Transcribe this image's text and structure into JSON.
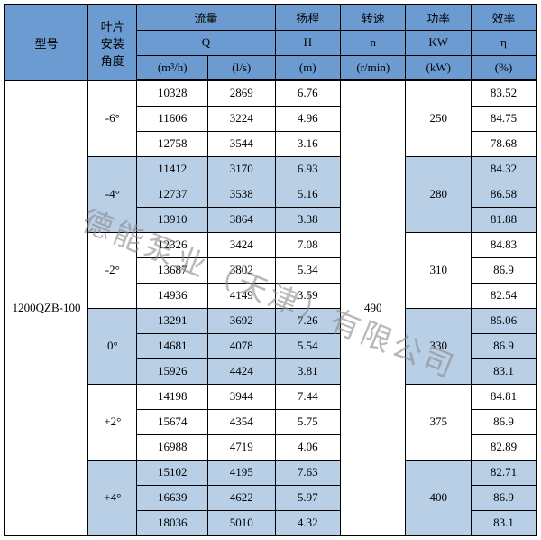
{
  "colors": {
    "header_bg": "#6b9bd1",
    "band_a": "#ffffff",
    "band_b": "#b8cfe6",
    "border": "#000000",
    "watermark": "#8a8a8a"
  },
  "watermark": "德能泵业（天津）有限公司",
  "header": {
    "model": "型号",
    "angle": "叶片\n安装\n角度",
    "flow": "流量",
    "head": "扬程",
    "speed": "转速",
    "power": "功率",
    "eff": "效率",
    "Q": "Q",
    "H": "H",
    "n": "n",
    "KW": "KW",
    "eta": "η",
    "q_m3h": "(m³/h)",
    "q_ls": "(l/s)",
    "h_m": "(m)",
    "n_rmin": "(r/min)",
    "kw_kw": "(kW)",
    "eff_pct": "(%)"
  },
  "model": "1200QZB-100",
  "speed_val": "490",
  "groups": [
    {
      "angle": "-6°",
      "band": "a",
      "power": "250",
      "rows": [
        {
          "q_m3h": "10328",
          "q_ls": "2869",
          "h": "6.76",
          "eff": "83.52"
        },
        {
          "q_m3h": "11606",
          "q_ls": "3224",
          "h": "4.96",
          "eff": "84.75"
        },
        {
          "q_m3h": "12758",
          "q_ls": "3544",
          "h": "3.16",
          "eff": "78.68"
        }
      ]
    },
    {
      "angle": "-4°",
      "band": "b",
      "power": "280",
      "rows": [
        {
          "q_m3h": "11412",
          "q_ls": "3170",
          "h": "6.93",
          "eff": "84.32"
        },
        {
          "q_m3h": "12737",
          "q_ls": "3538",
          "h": "5.16",
          "eff": "86.58"
        },
        {
          "q_m3h": "13910",
          "q_ls": "3864",
          "h": "3.38",
          "eff": "81.88"
        }
      ]
    },
    {
      "angle": "-2°",
      "band": "a",
      "power": "310",
      "rows": [
        {
          "q_m3h": "12326",
          "q_ls": "3424",
          "h": "7.08",
          "eff": "84.83"
        },
        {
          "q_m3h": "13687",
          "q_ls": "3802",
          "h": "5.34",
          "eff": "86.9"
        },
        {
          "q_m3h": "14936",
          "q_ls": "4149",
          "h": "3.59",
          "eff": "82.54"
        }
      ]
    },
    {
      "angle": "0°",
      "band": "b",
      "power": "330",
      "rows": [
        {
          "q_m3h": "13291",
          "q_ls": "3692",
          "h": "7.26",
          "eff": "85.06"
        },
        {
          "q_m3h": "14681",
          "q_ls": "4078",
          "h": "5.54",
          "eff": "86.9"
        },
        {
          "q_m3h": "15926",
          "q_ls": "4424",
          "h": "3.81",
          "eff": "83.1"
        }
      ]
    },
    {
      "angle": "+2°",
      "band": "a",
      "power": "375",
      "rows": [
        {
          "q_m3h": "14198",
          "q_ls": "3944",
          "h": "7.44",
          "eff": "84.81"
        },
        {
          "q_m3h": "15674",
          "q_ls": "4354",
          "h": "5.75",
          "eff": "86.9"
        },
        {
          "q_m3h": "16988",
          "q_ls": "4719",
          "h": "4.06",
          "eff": "82.89"
        }
      ]
    },
    {
      "angle": "+4°",
      "band": "b",
      "power": "400",
      "rows": [
        {
          "q_m3h": "15102",
          "q_ls": "4195",
          "h": "7.63",
          "eff": "82.71"
        },
        {
          "q_m3h": "16639",
          "q_ls": "4622",
          "h": "5.97",
          "eff": "86.9"
        },
        {
          "q_m3h": "18036",
          "q_ls": "5010",
          "h": "4.32",
          "eff": "83.1"
        }
      ]
    }
  ]
}
